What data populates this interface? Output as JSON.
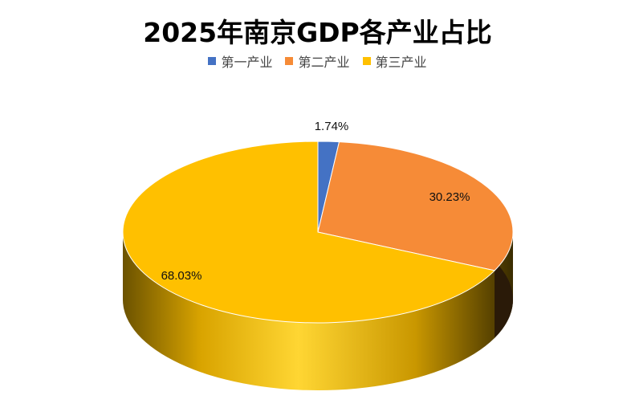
{
  "chart_data": {
    "type": "pie",
    "title": "2025年南京GDP各产业占比",
    "categories": [
      "第一产业",
      "第二产业",
      "第三产业"
    ],
    "values": [
      1.74,
      30.23,
      68.03
    ],
    "labels": [
      "1.74%",
      "30.23%",
      "68.03%"
    ],
    "colors": [
      "#4472C4",
      "#F68B37",
      "#FFC000"
    ],
    "legend_position": "top",
    "style": "3d"
  }
}
